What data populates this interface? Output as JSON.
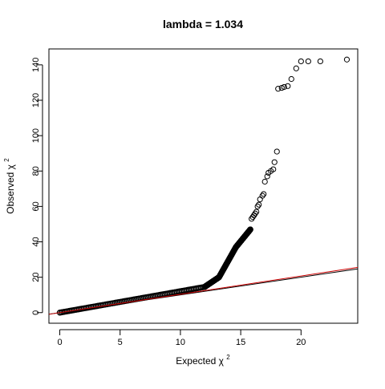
{
  "chart_data": {
    "type": "scatter",
    "title": "lambda = 1.034",
    "xlabel": {
      "base": "Expected  χ",
      "superscript": "2"
    },
    "ylabel": {
      "base": "Observed  χ",
      "superscript": "2"
    },
    "xlim": [
      -0.9,
      24.7
    ],
    "ylim": [
      -6,
      149
    ],
    "x_ticks": [
      0,
      5,
      10,
      15,
      20
    ],
    "x_tick_labels": [
      "0",
      "5",
      "10",
      "15",
      "20"
    ],
    "y_ticks": [
      0,
      20,
      40,
      60,
      80,
      100,
      120,
      140
    ],
    "y_tick_labels": [
      "0",
      "20",
      "40",
      "60",
      "80",
      "100",
      "120",
      "140"
    ],
    "marker": "open-circle",
    "marker_color": "#000000",
    "dense_trend_segments": [
      {
        "x_start": 0,
        "x_end": 12,
        "y_start": 0,
        "y_end": 14.5
      },
      {
        "x_start": 12,
        "x_end": 13.2,
        "y_start": 14.5,
        "y_end": 20
      },
      {
        "x_start": 13.2,
        "x_end": 14.6,
        "y_start": 20,
        "y_end": 37
      },
      {
        "x_start": 14.6,
        "x_end": 15.8,
        "y_start": 37,
        "y_end": 47
      }
    ],
    "points": [
      {
        "x": 15.8,
        "y": 47
      },
      {
        "x": 15.9,
        "y": 53
      },
      {
        "x": 16.0,
        "y": 54
      },
      {
        "x": 16.1,
        "y": 55
      },
      {
        "x": 16.2,
        "y": 56
      },
      {
        "x": 16.3,
        "y": 57
      },
      {
        "x": 16.4,
        "y": 60
      },
      {
        "x": 16.5,
        "y": 61
      },
      {
        "x": 16.6,
        "y": 64
      },
      {
        "x": 16.8,
        "y": 66
      },
      {
        "x": 16.9,
        "y": 67
      },
      {
        "x": 17.0,
        "y": 74
      },
      {
        "x": 17.2,
        "y": 77
      },
      {
        "x": 17.3,
        "y": 79
      },
      {
        "x": 17.5,
        "y": 80
      },
      {
        "x": 17.7,
        "y": 81
      },
      {
        "x": 17.8,
        "y": 85
      },
      {
        "x": 18.0,
        "y": 91
      },
      {
        "x": 18.1,
        "y": 126.5
      },
      {
        "x": 18.4,
        "y": 127
      },
      {
        "x": 18.6,
        "y": 127.5
      },
      {
        "x": 18.9,
        "y": 128
      },
      {
        "x": 19.2,
        "y": 132
      },
      {
        "x": 19.6,
        "y": 138
      },
      {
        "x": 20.0,
        "y": 142
      },
      {
        "x": 20.6,
        "y": 142
      },
      {
        "x": 21.6,
        "y": 142
      },
      {
        "x": 23.8,
        "y": 143
      }
    ],
    "reference_lines": [
      {
        "slope": 1.0,
        "intercept": 0.0,
        "color": "#000000"
      },
      {
        "slope": 1.034,
        "intercept": 0.0,
        "color": "#cc0000"
      }
    ],
    "grid": false,
    "legend": "none"
  }
}
